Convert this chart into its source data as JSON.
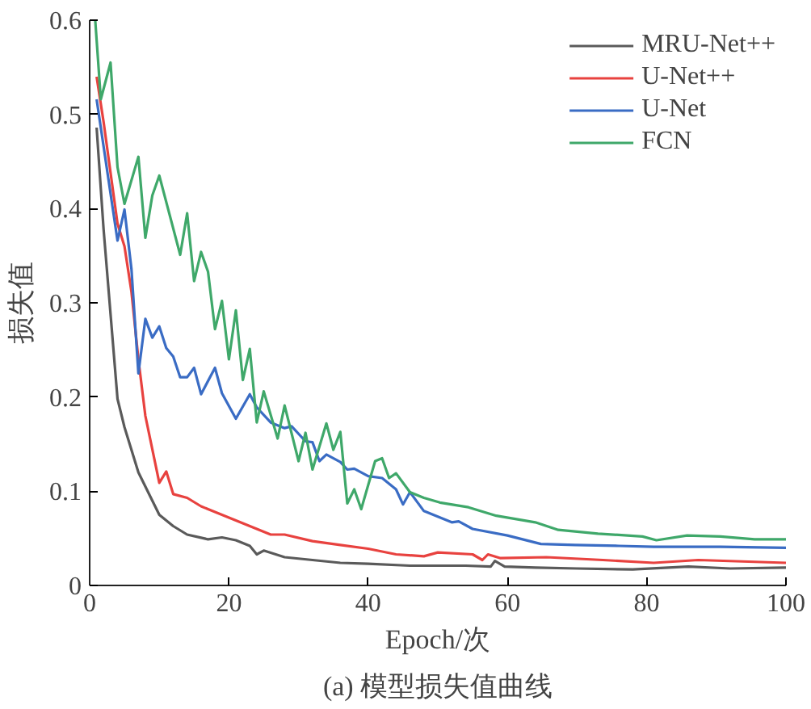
{
  "chart_data": {
    "type": "line",
    "title": "(a) 模型损失值曲线",
    "xlabel": "Epoch/次",
    "ylabel": "损失值",
    "xlim": [
      0,
      100
    ],
    "ylim": [
      0,
      0.6
    ],
    "xticks": [
      0,
      20,
      40,
      60,
      80,
      100
    ],
    "yticks": [
      0,
      0.1,
      0.2,
      0.3,
      0.4,
      0.5,
      0.6
    ],
    "grid": false,
    "legend": "top right",
    "marker": "none",
    "line_style": "solid",
    "series": [
      {
        "name": "MRU-Net++",
        "color": "#5a5a5a",
        "x": [
          1,
          2,
          4,
          5,
          7,
          10,
          12,
          14,
          17,
          19,
          21,
          23,
          24,
          25,
          28,
          32,
          36,
          40,
          46,
          50,
          54,
          57.6,
          58.2,
          59.6,
          64,
          70,
          78,
          86,
          92,
          100
        ],
        "values": [
          0.486,
          0.378,
          0.198,
          0.168,
          0.12,
          0.075,
          0.063,
          0.054,
          0.049,
          0.051,
          0.048,
          0.042,
          0.033,
          0.037,
          0.03,
          0.027,
          0.024,
          0.023,
          0.021,
          0.021,
          0.021,
          0.02,
          0.026,
          0.02,
          0.019,
          0.018,
          0.017,
          0.02,
          0.018,
          0.019
        ]
      },
      {
        "name": "U-Net++",
        "color": "#e8423f",
        "x": [
          1,
          2,
          4,
          5,
          6,
          7,
          8,
          10,
          11,
          12,
          14,
          16,
          17,
          20,
          24,
          26,
          28,
          32,
          36,
          40,
          44,
          48,
          50,
          55,
          56.4,
          57.2,
          59,
          65.6,
          73.7,
          81,
          87.4,
          100
        ],
        "values": [
          0.54,
          0.492,
          0.384,
          0.36,
          0.312,
          0.24,
          0.18,
          0.109,
          0.121,
          0.097,
          0.093,
          0.084,
          0.081,
          0.072,
          0.06,
          0.054,
          0.054,
          0.047,
          0.043,
          0.039,
          0.033,
          0.031,
          0.035,
          0.033,
          0.027,
          0.033,
          0.029,
          0.03,
          0.027,
          0.024,
          0.027,
          0.024
        ]
      },
      {
        "name": "U-Net",
        "color": "#3a6cc4",
        "x": [
          1,
          4,
          5,
          6,
          7,
          8,
          9,
          10,
          11,
          12,
          13,
          14,
          15,
          16,
          18,
          19,
          21,
          23,
          24,
          26,
          28,
          29,
          31,
          32,
          33,
          34,
          36,
          37,
          38,
          40,
          42,
          44,
          45,
          46,
          48,
          52,
          53,
          55,
          60,
          64.8,
          69.7,
          76,
          81,
          90.6,
          100
        ],
        "values": [
          0.516,
          0.366,
          0.399,
          0.336,
          0.225,
          0.283,
          0.263,
          0.275,
          0.252,
          0.243,
          0.221,
          0.221,
          0.231,
          0.203,
          0.231,
          0.204,
          0.177,
          0.203,
          0.189,
          0.173,
          0.167,
          0.169,
          0.153,
          0.152,
          0.132,
          0.139,
          0.131,
          0.123,
          0.124,
          0.116,
          0.114,
          0.102,
          0.086,
          0.099,
          0.079,
          0.067,
          0.068,
          0.06,
          0.053,
          0.044,
          0.043,
          0.042,
          0.041,
          0.041,
          0.04
        ]
      },
      {
        "name": "FCN",
        "color": "#3fa86a",
        "x": [
          0.8,
          1.6,
          3,
          4,
          5,
          7,
          8,
          9,
          10,
          13,
          14,
          15,
          16,
          17,
          18,
          19,
          20,
          21,
          22,
          23,
          24,
          25,
          27,
          28,
          30,
          31,
          32,
          34,
          35,
          36,
          37,
          38,
          39,
          41,
          42,
          43,
          44,
          46,
          48,
          50.3,
          54.4,
          58.4,
          64,
          67.3,
          73,
          79.4,
          81.4,
          85.8,
          90.6,
          95.5,
          100
        ],
        "values": [
          0.6,
          0.516,
          0.555,
          0.444,
          0.405,
          0.455,
          0.369,
          0.414,
          0.435,
          0.351,
          0.395,
          0.323,
          0.354,
          0.333,
          0.272,
          0.302,
          0.24,
          0.292,
          0.218,
          0.251,
          0.173,
          0.206,
          0.156,
          0.191,
          0.132,
          0.162,
          0.123,
          0.172,
          0.144,
          0.163,
          0.087,
          0.102,
          0.081,
          0.132,
          0.135,
          0.114,
          0.119,
          0.099,
          0.093,
          0.088,
          0.083,
          0.074,
          0.067,
          0.059,
          0.055,
          0.052,
          0.048,
          0.053,
          0.052,
          0.049,
          0.049
        ]
      }
    ]
  }
}
